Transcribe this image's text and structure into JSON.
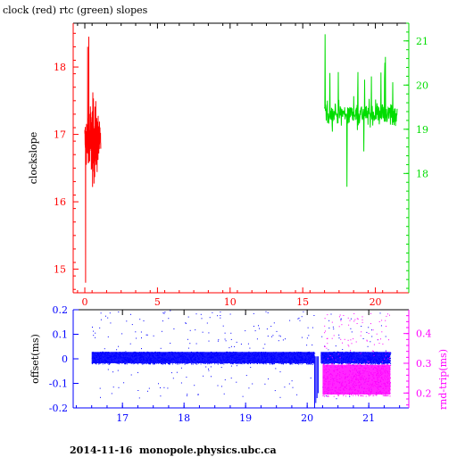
{
  "title": "clock (red) rtc (green) slopes",
  "footer": "2014-11-16  monopole.physics.ubc.ca",
  "colors": {
    "clock": "#ff0000",
    "rtc": "#00dd00",
    "offset": "#0000ff",
    "rtt": "#ff00ff",
    "axis": "#000000"
  },
  "chart_data": [
    {
      "type": "line",
      "title": "clock (red) rtc (green) slopes",
      "ylabel": "clockslope",
      "xlim": [
        -0.8,
        22.3
      ],
      "x_ticks": [
        "0",
        "5",
        "10",
        "15",
        "20"
      ],
      "y_left": {
        "lim": [
          14.65,
          18.65
        ],
        "ticks": [
          "15",
          "16",
          "17",
          "18"
        ]
      },
      "y_right": {
        "lim": [
          15.3,
          21.4
        ],
        "ticks": [
          "18",
          "19",
          "20",
          "21"
        ]
      },
      "series": [
        {
          "name": "clock",
          "axis": "left",
          "color": "#ff0000",
          "x_range": [
            0.0,
            1.1
          ],
          "y_range": [
            14.8,
            18.45
          ]
        },
        {
          "name": "rtc",
          "axis": "right",
          "color": "#00dd00",
          "x_range": [
            16.5,
            21.5
          ],
          "y_range": [
            17.65,
            21.2
          ]
        }
      ]
    },
    {
      "type": "scatter",
      "ylabel_left": "offset(ms)",
      "ylabel_right": "rnd-trip(ms)",
      "xlim": [
        16.2,
        21.65
      ],
      "x_ticks": [
        "17",
        "18",
        "19",
        "20",
        "21"
      ],
      "y_left": {
        "lim": [
          -0.2,
          0.2
        ],
        "ticks": [
          "-0.2",
          "-0.1",
          "0",
          "0.1",
          "0.2"
        ]
      },
      "y_right": {
        "lim": [
          0.15,
          0.48
        ],
        "ticks": [
          "0.2",
          "0.3",
          "0.4"
        ]
      },
      "series": [
        {
          "name": "offset",
          "axis": "left",
          "color": "#0000ff",
          "x_range": [
            16.5,
            21.35
          ],
          "band": [
            -0.02,
            0.03
          ]
        },
        {
          "name": "rnd-trip",
          "axis": "right",
          "color": "#ff00ff",
          "x_range": [
            20.25,
            21.35
          ],
          "band": [
            0.19,
            0.3
          ]
        }
      ]
    }
  ]
}
